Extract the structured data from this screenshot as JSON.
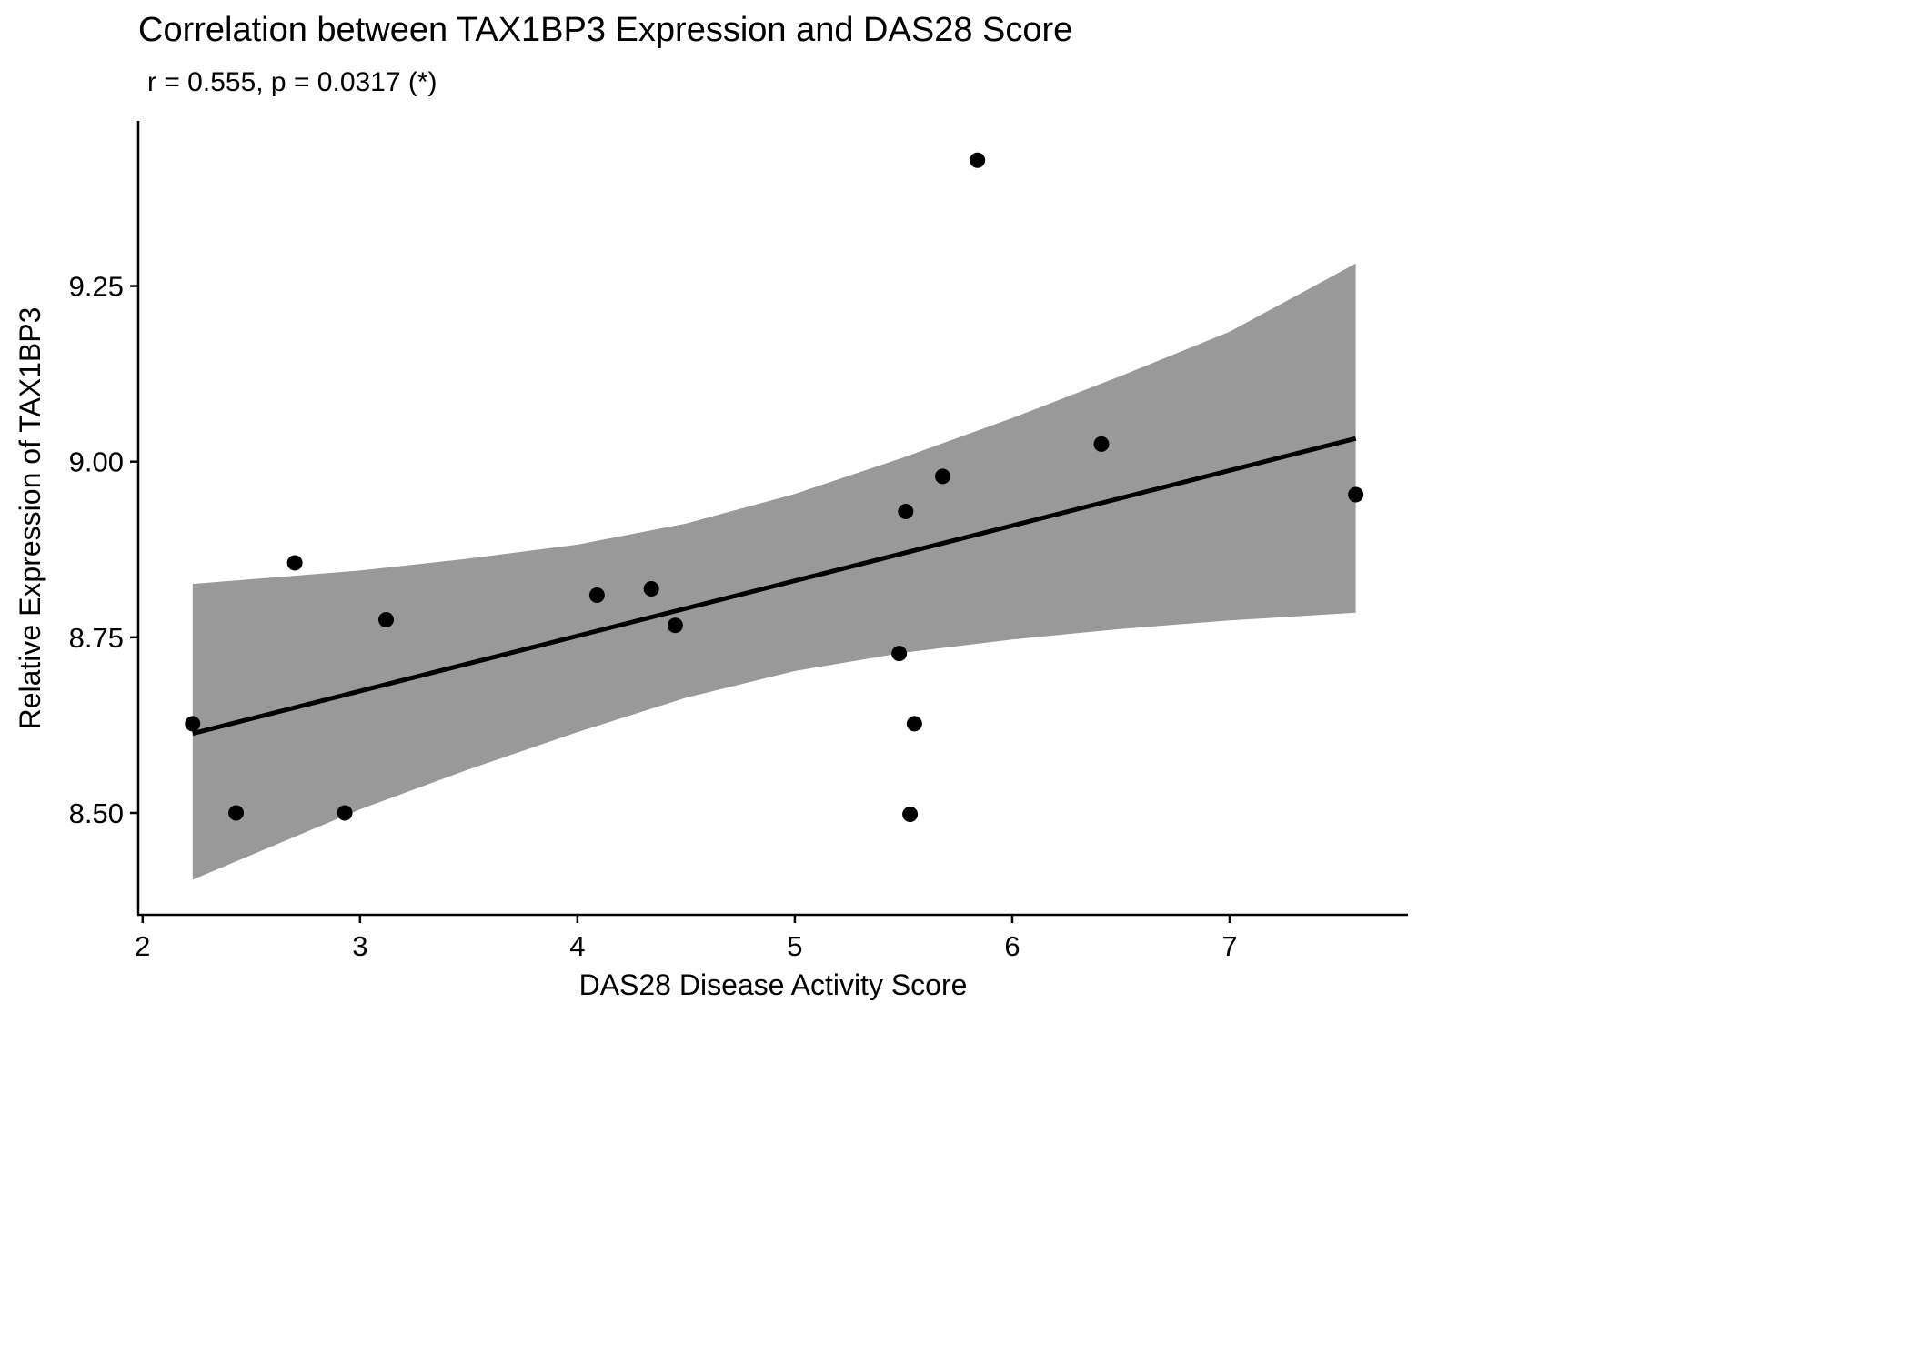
{
  "chart_data": {
    "type": "scatter",
    "title": "Correlation between TAX1BP3 Expression and DAS28 Score",
    "subtitle": "r = 0.555, p = 0.0317 (*)",
    "xlabel": "DAS28 Disease Activity Score",
    "ylabel": "Relative Expression of TAX1BP3",
    "xlim": [
      1.98,
      7.82
    ],
    "ylim": [
      8.355,
      9.485
    ],
    "x_ticks": [
      2,
      3,
      4,
      5,
      6,
      7
    ],
    "y_ticks": [
      8.5,
      8.75,
      9.0,
      9.25
    ],
    "x_tick_labels": [
      "2",
      "3",
      "4",
      "5",
      "6",
      "7"
    ],
    "y_tick_labels": [
      "8.50",
      "8.75",
      "9.00",
      "9.25"
    ],
    "grid": false,
    "points": [
      {
        "x": 2.23,
        "y": 8.627
      },
      {
        "x": 2.43,
        "y": 8.5
      },
      {
        "x": 2.7,
        "y": 8.856
      },
      {
        "x": 2.93,
        "y": 8.5
      },
      {
        "x": 3.12,
        "y": 8.775
      },
      {
        "x": 4.09,
        "y": 8.81
      },
      {
        "x": 4.34,
        "y": 8.819
      },
      {
        "x": 4.45,
        "y": 8.767
      },
      {
        "x": 5.48,
        "y": 8.727
      },
      {
        "x": 5.51,
        "y": 8.929
      },
      {
        "x": 5.53,
        "y": 8.498
      },
      {
        "x": 5.55,
        "y": 8.627
      },
      {
        "x": 5.68,
        "y": 8.979
      },
      {
        "x": 5.84,
        "y": 9.429
      },
      {
        "x": 6.41,
        "y": 9.025
      },
      {
        "x": 7.58,
        "y": 8.953
      }
    ],
    "fit_line": [
      {
        "x": 2.23,
        "y": 8.613
      },
      {
        "x": 7.58,
        "y": 9.033
      }
    ],
    "confidence_band": [
      {
        "x": 2.23,
        "lower": 8.405,
        "upper": 8.826
      },
      {
        "x": 3.0,
        "lower": 8.505,
        "upper": 8.845
      },
      {
        "x": 3.5,
        "lower": 8.562,
        "upper": 8.862
      },
      {
        "x": 4.0,
        "lower": 8.615,
        "upper": 8.882
      },
      {
        "x": 4.5,
        "lower": 8.664,
        "upper": 8.912
      },
      {
        "x": 5.0,
        "lower": 8.702,
        "upper": 8.954
      },
      {
        "x": 5.5,
        "lower": 8.728,
        "upper": 9.006
      },
      {
        "x": 6.0,
        "lower": 8.747,
        "upper": 9.062
      },
      {
        "x": 6.5,
        "lower": 8.762,
        "upper": 9.122
      },
      {
        "x": 7.0,
        "lower": 8.774,
        "upper": 9.185
      },
      {
        "x": 7.58,
        "lower": 8.785,
        "upper": 9.282
      }
    ],
    "colors": {
      "points": "#000000",
      "fit_line": "#000000",
      "band": "#999999",
      "axes": "#000000"
    }
  }
}
